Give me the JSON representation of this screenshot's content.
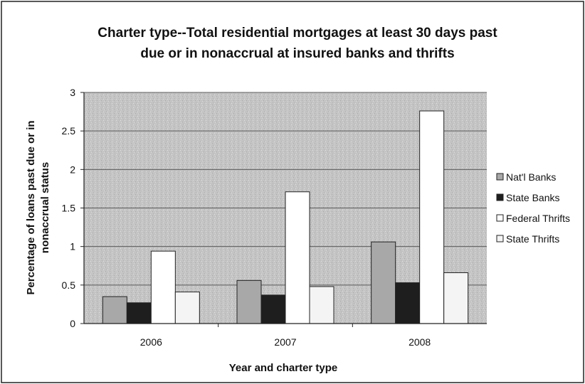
{
  "chart_data": {
    "type": "bar",
    "title_lines": [
      "Charter type--Total residential mortgages at least 30 days past",
      "due or in nonaccrual at insured banks and thrifts"
    ],
    "xlabel": "Year and charter type",
    "ylabel_lines": [
      "Percentage of loans past due or in",
      "nonaccrual status"
    ],
    "categories": [
      "2006",
      "2007",
      "2008"
    ],
    "ylim": [
      0,
      3
    ],
    "yticks": [
      "0",
      "0.5",
      "1",
      "1.5",
      "2",
      "2.5",
      "3"
    ],
    "grid": true,
    "legend_position": "right",
    "series": [
      {
        "name": "Nat'l Banks",
        "values": [
          0.35,
          0.56,
          1.06
        ],
        "color": "#a8a8a8"
      },
      {
        "name": "State Banks",
        "values": [
          0.27,
          0.37,
          0.53
        ],
        "color": "#1e1e1e"
      },
      {
        "name": "Federal Thrifts",
        "values": [
          0.94,
          1.71,
          2.76
        ],
        "color": "#ffffff"
      },
      {
        "name": "State Thrifts",
        "values": [
          0.41,
          0.48,
          0.66
        ],
        "color": "#f4f4f4"
      }
    ]
  }
}
